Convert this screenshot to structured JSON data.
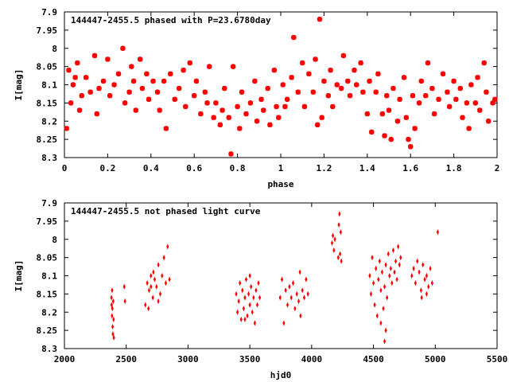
{
  "chart_data": [
    {
      "type": "scatter",
      "title": "144447-2455.5 phased with P=23.6780day",
      "xlabel": "phase",
      "ylabel": "I[mag]",
      "xlim": [
        0,
        2
      ],
      "ylim": [
        8.3,
        7.9
      ],
      "y_inverted": true,
      "xticks": [
        0,
        0.2,
        0.4,
        0.6,
        0.8,
        1,
        1.2,
        1.4,
        1.6,
        1.8,
        2
      ],
      "xtick_labels": [
        "0",
        "0.2",
        "0.4",
        "0.6",
        "0.8",
        "1",
        "1.2",
        "1.4",
        "1.6",
        "1.8",
        "2"
      ],
      "yticks": [
        7.9,
        7.95,
        8,
        8.05,
        8.1,
        8.15,
        8.2,
        8.25,
        8.3
      ],
      "ytick_labels": [
        "7.9",
        "7.95",
        "8",
        "8.05",
        "8.1",
        "8.15",
        "8.2",
        "8.25",
        "8.3"
      ],
      "grid": false,
      "marker_color": "#ff0000",
      "marker": "star",
      "points": [
        [
          0.01,
          8.22
        ],
        [
          0.02,
          8.06
        ],
        [
          0.03,
          8.15
        ],
        [
          0.04,
          8.1
        ],
        [
          0.05,
          8.08
        ],
        [
          0.06,
          8.04
        ],
        [
          0.07,
          8.17
        ],
        [
          0.08,
          8.13
        ],
        [
          0.1,
          8.08
        ],
        [
          0.12,
          8.12
        ],
        [
          0.14,
          8.02
        ],
        [
          0.15,
          8.18
        ],
        [
          0.16,
          8.11
        ],
        [
          0.18,
          8.09
        ],
        [
          0.2,
          8.03
        ],
        [
          0.21,
          8.13
        ],
        [
          0.23,
          8.1
        ],
        [
          0.25,
          8.07
        ],
        [
          0.27,
          8.0
        ],
        [
          0.28,
          8.15
        ],
        [
          0.3,
          8.12
        ],
        [
          0.31,
          8.05
        ],
        [
          0.32,
          8.09
        ],
        [
          0.33,
          8.17
        ],
        [
          0.35,
          8.03
        ],
        [
          0.36,
          8.11
        ],
        [
          0.38,
          8.07
        ],
        [
          0.39,
          8.14
        ],
        [
          0.41,
          8.09
        ],
        [
          0.43,
          8.12
        ],
        [
          0.44,
          8.17
        ],
        [
          0.46,
          8.09
        ],
        [
          0.47,
          8.22
        ],
        [
          0.49,
          8.07
        ],
        [
          0.51,
          8.14
        ],
        [
          0.53,
          8.11
        ],
        [
          0.55,
          8.06
        ],
        [
          0.56,
          8.16
        ],
        [
          0.58,
          8.04
        ],
        [
          0.6,
          8.13
        ],
        [
          0.61,
          8.09
        ],
        [
          0.63,
          8.18
        ],
        [
          0.65,
          8.12
        ],
        [
          0.66,
          8.15
        ],
        [
          0.67,
          8.05
        ],
        [
          0.69,
          8.19
        ],
        [
          0.7,
          8.15
        ],
        [
          0.72,
          8.21
        ],
        [
          0.73,
          8.17
        ],
        [
          0.74,
          8.11
        ],
        [
          0.76,
          8.19
        ],
        [
          0.77,
          8.29
        ],
        [
          0.78,
          8.05
        ],
        [
          0.8,
          8.16
        ],
        [
          0.81,
          8.22
        ],
        [
          0.82,
          8.12
        ],
        [
          0.84,
          8.18
        ],
        [
          0.86,
          8.15
        ],
        [
          0.88,
          8.09
        ],
        [
          0.89,
          8.2
        ],
        [
          0.91,
          8.14
        ],
        [
          0.92,
          8.17
        ],
        [
          0.94,
          8.11
        ],
        [
          0.95,
          8.21
        ],
        [
          0.97,
          8.06
        ],
        [
          0.98,
          8.16
        ],
        [
          0.99,
          8.19
        ],
        [
          1.01,
          8.1
        ],
        [
          1.02,
          8.16
        ],
        [
          1.03,
          8.14
        ],
        [
          1.05,
          8.08
        ],
        [
          1.06,
          7.97
        ],
        [
          1.08,
          8.12
        ],
        [
          1.1,
          8.04
        ],
        [
          1.11,
          8.16
        ],
        [
          1.13,
          8.07
        ],
        [
          1.15,
          8.12
        ],
        [
          1.16,
          8.03
        ],
        [
          1.17,
          8.21
        ],
        [
          1.18,
          7.92
        ],
        [
          1.19,
          8.19
        ],
        [
          1.2,
          8.09
        ],
        [
          1.22,
          8.13
        ],
        [
          1.23,
          8.06
        ],
        [
          1.24,
          8.16
        ],
        [
          1.26,
          8.1
        ],
        [
          1.28,
          8.11
        ],
        [
          1.29,
          8.02
        ],
        [
          1.31,
          8.09
        ],
        [
          1.32,
          8.13
        ],
        [
          1.34,
          8.06
        ],
        [
          1.35,
          8.1
        ],
        [
          1.37,
          8.04
        ],
        [
          1.38,
          8.12
        ],
        [
          1.4,
          8.18
        ],
        [
          1.41,
          8.09
        ],
        [
          1.42,
          8.23
        ],
        [
          1.44,
          8.12
        ],
        [
          1.45,
          8.07
        ],
        [
          1.47,
          8.18
        ],
        [
          1.48,
          8.24
        ],
        [
          1.49,
          8.13
        ],
        [
          1.5,
          8.17
        ],
        [
          1.51,
          8.25
        ],
        [
          1.52,
          8.11
        ],
        [
          1.54,
          8.2
        ],
        [
          1.55,
          8.14
        ],
        [
          1.57,
          8.08
        ],
        [
          1.58,
          8.19
        ],
        [
          1.59,
          8.25
        ],
        [
          1.6,
          8.27
        ],
        [
          1.61,
          8.13
        ],
        [
          1.62,
          8.22
        ],
        [
          1.64,
          8.15
        ],
        [
          1.65,
          8.09
        ],
        [
          1.67,
          8.13
        ],
        [
          1.68,
          8.04
        ],
        [
          1.7,
          8.11
        ],
        [
          1.71,
          8.18
        ],
        [
          1.73,
          8.14
        ],
        [
          1.75,
          8.07
        ],
        [
          1.77,
          8.12
        ],
        [
          1.78,
          8.16
        ],
        [
          1.8,
          8.09
        ],
        [
          1.81,
          8.14
        ],
        [
          1.83,
          8.11
        ],
        [
          1.84,
          8.19
        ],
        [
          1.86,
          8.15
        ],
        [
          1.87,
          8.22
        ],
        [
          1.88,
          8.1
        ],
        [
          1.9,
          8.15
        ],
        [
          1.91,
          8.08
        ],
        [
          1.92,
          8.17
        ],
        [
          1.94,
          8.04
        ],
        [
          1.95,
          8.12
        ],
        [
          1.96,
          8.2
        ],
        [
          1.98,
          8.15
        ],
        [
          1.99,
          8.14
        ]
      ]
    },
    {
      "type": "scatter",
      "title": "144447-2455.5 not phased light curve",
      "xlabel": "hjd0",
      "ylabel": "I[mag]",
      "xlim": [
        2000,
        5500
      ],
      "ylim": [
        8.3,
        7.9
      ],
      "y_inverted": true,
      "xticks": [
        2000,
        2500,
        3000,
        3500,
        4000,
        4500,
        5000,
        5500
      ],
      "xtick_labels": [
        "2000",
        "2500",
        "3000",
        "3500",
        "4000",
        "4500",
        "5000",
        "5500"
      ],
      "yticks": [
        7.9,
        7.95,
        8,
        8.05,
        8.1,
        8.15,
        8.2,
        8.25,
        8.3
      ],
      "ytick_labels": [
        "7.9",
        "7.95",
        "8",
        "8.05",
        "8.1",
        "8.15",
        "8.2",
        "8.25",
        "8.3"
      ],
      "grid": false,
      "marker_color": "#ff0000",
      "marker": "diamond",
      "points": [
        [
          2380,
          8.16
        ],
        [
          2382,
          8.18
        ],
        [
          2385,
          8.21
        ],
        [
          2388,
          8.19
        ],
        [
          2390,
          8.24
        ],
        [
          2392,
          8.26
        ],
        [
          2395,
          8.17
        ],
        [
          2398,
          8.22
        ],
        [
          2400,
          8.27
        ],
        [
          2386,
          8.14
        ],
        [
          2484,
          8.13
        ],
        [
          2490,
          8.17
        ],
        [
          2655,
          8.18
        ],
        [
          2670,
          8.12
        ],
        [
          2685,
          8.14
        ],
        [
          2700,
          8.1
        ],
        [
          2715,
          8.16
        ],
        [
          2730,
          8.11
        ],
        [
          2745,
          8.13
        ],
        [
          2760,
          8.07
        ],
        [
          2775,
          8.15
        ],
        [
          2790,
          8.1
        ],
        [
          2805,
          8.05
        ],
        [
          2820,
          8.12
        ],
        [
          2835,
          8.02
        ],
        [
          2850,
          8.11
        ],
        [
          2680,
          8.19
        ],
        [
          2700,
          8.13
        ],
        [
          2720,
          8.09
        ],
        [
          2760,
          8.17
        ],
        [
          3390,
          8.15
        ],
        [
          3400,
          8.2
        ],
        [
          3410,
          8.17
        ],
        [
          3420,
          8.12
        ],
        [
          3430,
          8.22
        ],
        [
          3440,
          8.14
        ],
        [
          3450,
          8.19
        ],
        [
          3460,
          8.16
        ],
        [
          3470,
          8.11
        ],
        [
          3480,
          8.21
        ],
        [
          3490,
          8.15
        ],
        [
          3500,
          8.18
        ],
        [
          3510,
          8.13
        ],
        [
          3520,
          8.2
        ],
        [
          3530,
          8.16
        ],
        [
          3540,
          8.23
        ],
        [
          3550,
          8.14
        ],
        [
          3560,
          8.18
        ],
        [
          3570,
          8.12
        ],
        [
          3580,
          8.16
        ],
        [
          3460,
          8.22
        ],
        [
          3500,
          8.1
        ],
        [
          3745,
          8.16
        ],
        [
          3760,
          8.11
        ],
        [
          3775,
          8.23
        ],
        [
          3790,
          8.14
        ],
        [
          3805,
          8.18
        ],
        [
          3820,
          8.13
        ],
        [
          3835,
          8.16
        ],
        [
          3850,
          8.12
        ],
        [
          3865,
          8.19
        ],
        [
          3880,
          8.15
        ],
        [
          3895,
          8.17
        ],
        [
          3910,
          8.21
        ],
        [
          3925,
          8.14
        ],
        [
          3940,
          8.16
        ],
        [
          3955,
          8.11
        ],
        [
          3970,
          8.15
        ],
        [
          3905,
          8.09
        ],
        [
          4165,
          8.01
        ],
        [
          4172,
          7.99
        ],
        [
          4180,
          8.03
        ],
        [
          4188,
          8.0
        ],
        [
          4215,
          8.05
        ],
        [
          4220,
          7.96
        ],
        [
          4225,
          7.93
        ],
        [
          4230,
          8.04
        ],
        [
          4235,
          7.98
        ],
        [
          4240,
          8.06
        ],
        [
          4470,
          8.1
        ],
        [
          4480,
          8.15
        ],
        [
          4490,
          8.05
        ],
        [
          4500,
          8.12
        ],
        [
          4510,
          8.18
        ],
        [
          4520,
          8.08
        ],
        [
          4530,
          8.21
        ],
        [
          4540,
          8.11
        ],
        [
          4550,
          8.06
        ],
        [
          4560,
          8.14
        ],
        [
          4570,
          8.09
        ],
        [
          4580,
          8.19
        ],
        [
          4590,
          8.13
        ],
        [
          4600,
          8.07
        ],
        [
          4610,
          8.16
        ],
        [
          4620,
          8.04
        ],
        [
          4630,
          8.1
        ],
        [
          4640,
          8.08
        ],
        [
          4650,
          8.12
        ],
        [
          4660,
          8.03
        ],
        [
          4670,
          8.09
        ],
        [
          4680,
          8.06
        ],
        [
          4690,
          8.11
        ],
        [
          4700,
          8.02
        ],
        [
          4710,
          8.07
        ],
        [
          4720,
          8.05
        ],
        [
          4590,
          8.28
        ],
        [
          4600,
          8.25
        ],
        [
          4560,
          8.23
        ],
        [
          4810,
          8.1
        ],
        [
          4825,
          8.08
        ],
        [
          4840,
          8.12
        ],
        [
          4855,
          8.06
        ],
        [
          4870,
          8.09
        ],
        [
          4885,
          8.14
        ],
        [
          4900,
          8.07
        ],
        [
          4915,
          8.11
        ],
        [
          4930,
          8.1
        ],
        [
          4945,
          8.13
        ],
        [
          4960,
          8.08
        ],
        [
          4975,
          8.12
        ],
        [
          4890,
          8.16
        ],
        [
          4930,
          8.15
        ],
        [
          5020,
          7.98
        ]
      ]
    }
  ]
}
